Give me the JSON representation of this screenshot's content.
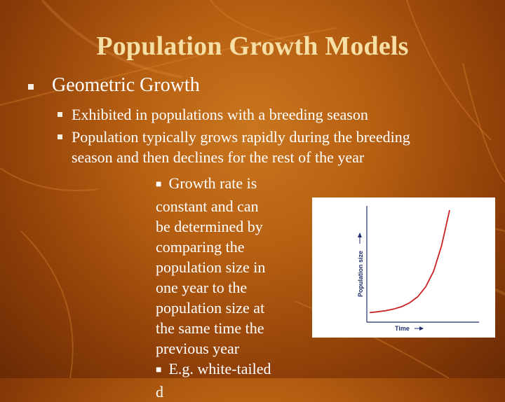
{
  "slide": {
    "title": "Population Growth Models",
    "bullet1": "Geometric Growth",
    "sub1": "Exhibited in populations with a breeding season",
    "sub2_line1": "Population typically grows rapidly during the breeding",
    "sub2_line2": "season and then declines for the rest of the year",
    "sub3_lines": [
      "Growth rate is",
      "constant and can",
      "be determined by",
      "comparing the",
      "population size in",
      "one year to the",
      "population size at",
      "the same time the",
      "previous year"
    ],
    "sub4": "E.g. white-tailed",
    "sub4_cut": "d"
  },
  "graph": {
    "ylabel": "Population size",
    "xlabel": "Time",
    "curve_color": "#cc2020",
    "axis_color": "#1f2f6e"
  },
  "chart_data": {
    "type": "line",
    "title": "",
    "xlabel": "Time",
    "ylabel": "Population size",
    "series": [
      {
        "x": [
          0,
          1,
          2,
          3,
          4,
          5,
          6,
          7,
          8,
          9,
          10
        ],
        "y": [
          1.0,
          1.2,
          1.5,
          1.9,
          2.5,
          3.5,
          5.0,
          7.5,
          11.5,
          18.0,
          27.0
        ]
      }
    ]
  }
}
